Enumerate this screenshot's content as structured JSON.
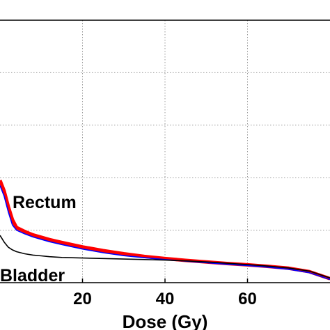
{
  "chart_data": {
    "type": "line",
    "xlabel": "Dose (Gy)",
    "ylabel": "",
    "xlim": [
      0,
      80
    ],
    "ylim": [
      0,
      100
    ],
    "x_ticks": [
      20,
      40,
      60
    ],
    "x_tick_labels": [
      "20",
      "40",
      "60"
    ],
    "y_gridlines": [
      20,
      40,
      60,
      80
    ],
    "grid": true,
    "grid_style": "dotted",
    "annotations": [
      {
        "text": "Rectum",
        "color": "#0000cc"
      },
      {
        "text": "Bladder",
        "color": "#000000"
      }
    ],
    "series": [
      {
        "name": "Rectum",
        "color": "#ff0000",
        "x": [
          0,
          1,
          2,
          3,
          4,
          6,
          8,
          10,
          12,
          15,
          20,
          25,
          30,
          35,
          40,
          45,
          50,
          55,
          60,
          65,
          70,
          75,
          80
        ],
        "y": [
          39,
          35,
          29,
          24,
          21,
          19.5,
          18.2,
          17.3,
          16.4,
          15.3,
          13.6,
          12.2,
          11.0,
          10.0,
          9.2,
          8.5,
          7.9,
          7.3,
          6.8,
          6.2,
          5.5,
          4.2,
          1.5
        ]
      },
      {
        "name": "Rectum",
        "color": "#0000ff",
        "x": [
          0,
          1,
          2,
          3,
          4,
          6,
          8,
          10,
          12,
          15,
          20,
          25,
          30,
          35,
          40,
          45,
          50,
          55,
          60,
          65,
          70,
          75,
          80
        ],
        "y": [
          37,
          33,
          27,
          22,
          20,
          18.6,
          17.4,
          16.5,
          15.6,
          14.5,
          12.8,
          11.4,
          10.3,
          9.5,
          8.8,
          8.2,
          7.6,
          7.0,
          6.5,
          5.9,
          5.1,
          3.8,
          1.2
        ]
      },
      {
        "name": "Bladder",
        "color": "#000000",
        "x": [
          0,
          1,
          2,
          3,
          4,
          6,
          8,
          10,
          12,
          15,
          20,
          25,
          30,
          35,
          40,
          45,
          50,
          55,
          60,
          65,
          70,
          75,
          80
        ],
        "y": [
          18,
          15.5,
          13.5,
          12.5,
          11.8,
          11.0,
          10.5,
          10.2,
          9.9,
          9.6,
          9.4,
          9.2,
          9.0,
          8.8,
          8.6,
          8.3,
          7.9,
          7.4,
          6.9,
          6.3,
          5.6,
          4.4,
          1.8
        ]
      }
    ]
  }
}
